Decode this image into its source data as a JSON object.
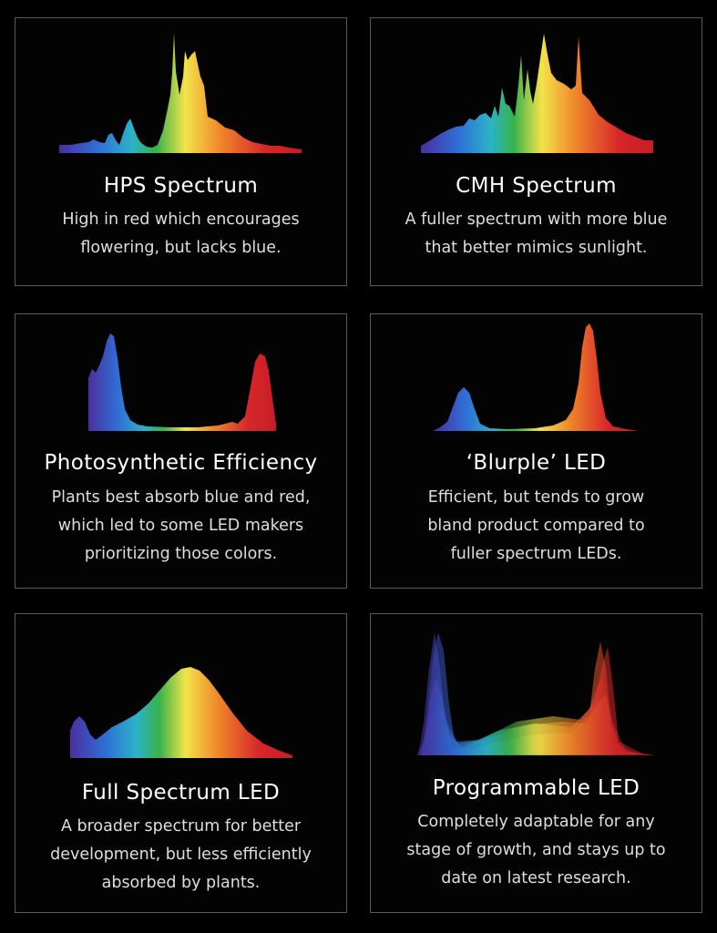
{
  "palette": {
    "background": "#000000",
    "card_border": "#5a5a5a",
    "violet": "#4a2fa0",
    "blue": "#2f6fd6",
    "cyan": "#2bb3c7",
    "green": "#36b34a",
    "yellow": "#f3e34a",
    "orange": "#f08a2a",
    "red": "#d8262a"
  },
  "cards": [
    {
      "title": "HPS Spectrum",
      "lines": [
        "High in red which encourages",
        "flowering, but lacks blue."
      ],
      "graphic": "spectrum-curve-icon"
    },
    {
      "title": "CMH Spectrum",
      "lines": [
        "A fuller spectrum with more blue",
        "that better mimics sunlight."
      ],
      "graphic": "spectrum-curve-icon"
    },
    {
      "title": "Photosynthetic Efficiency",
      "lines": [
        "Plants best absorb blue and red,",
        "which led to some LED makers",
        "prioritizing those colors."
      ],
      "graphic": "spectrum-curve-icon"
    },
    {
      "title": "‘Blurple’ LED",
      "lines": [
        "Efficient, but tends to grow",
        "bland product compared to",
        "fuller spectrum LEDs."
      ],
      "graphic": "spectrum-curve-icon"
    },
    {
      "title": "Full Spectrum LED",
      "lines": [
        "A broader spectrum for better",
        "development, but less efficiently",
        "absorbed by plants."
      ],
      "graphic": "spectrum-curve-icon"
    },
    {
      "title": "Programmable LED",
      "lines": [
        "Completely adaptable for any",
        "stage of growth, and stays up to",
        "date on latest research."
      ],
      "graphic": "spectrum-curve-icon"
    }
  ]
}
